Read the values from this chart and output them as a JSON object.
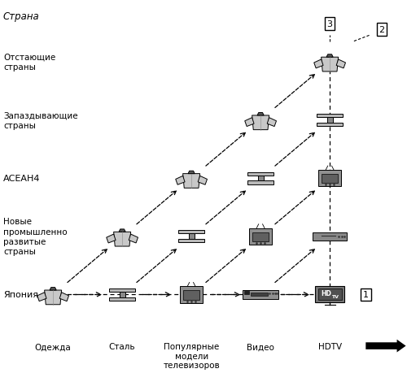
{
  "title": "Страна",
  "y_labels": [
    "Япония",
    "Новые\nпромышленно\nразвитые\nстраны",
    "АСЕАН4",
    "Запаздывающие\nстраны",
    "Отстающие\nстраны"
  ],
  "x_labels": [
    "Одежда",
    "Сталь",
    "Популярные\nмодели\nтелевизоров",
    "Видео",
    "HDTV"
  ],
  "bg_color": "#ffffff",
  "line_color": "#000000",
  "text_color": "#000000",
  "x_positions": [
    0,
    1,
    2,
    3,
    4
  ],
  "y_positions": [
    0,
    1,
    2,
    3,
    4
  ],
  "icon_size": 0.19,
  "xlim": [
    -0.75,
    5.1
  ],
  "ylim": [
    -1.05,
    5.05
  ],
  "figsize": [
    5.0,
    4.6
  ],
  "dpi": 100
}
